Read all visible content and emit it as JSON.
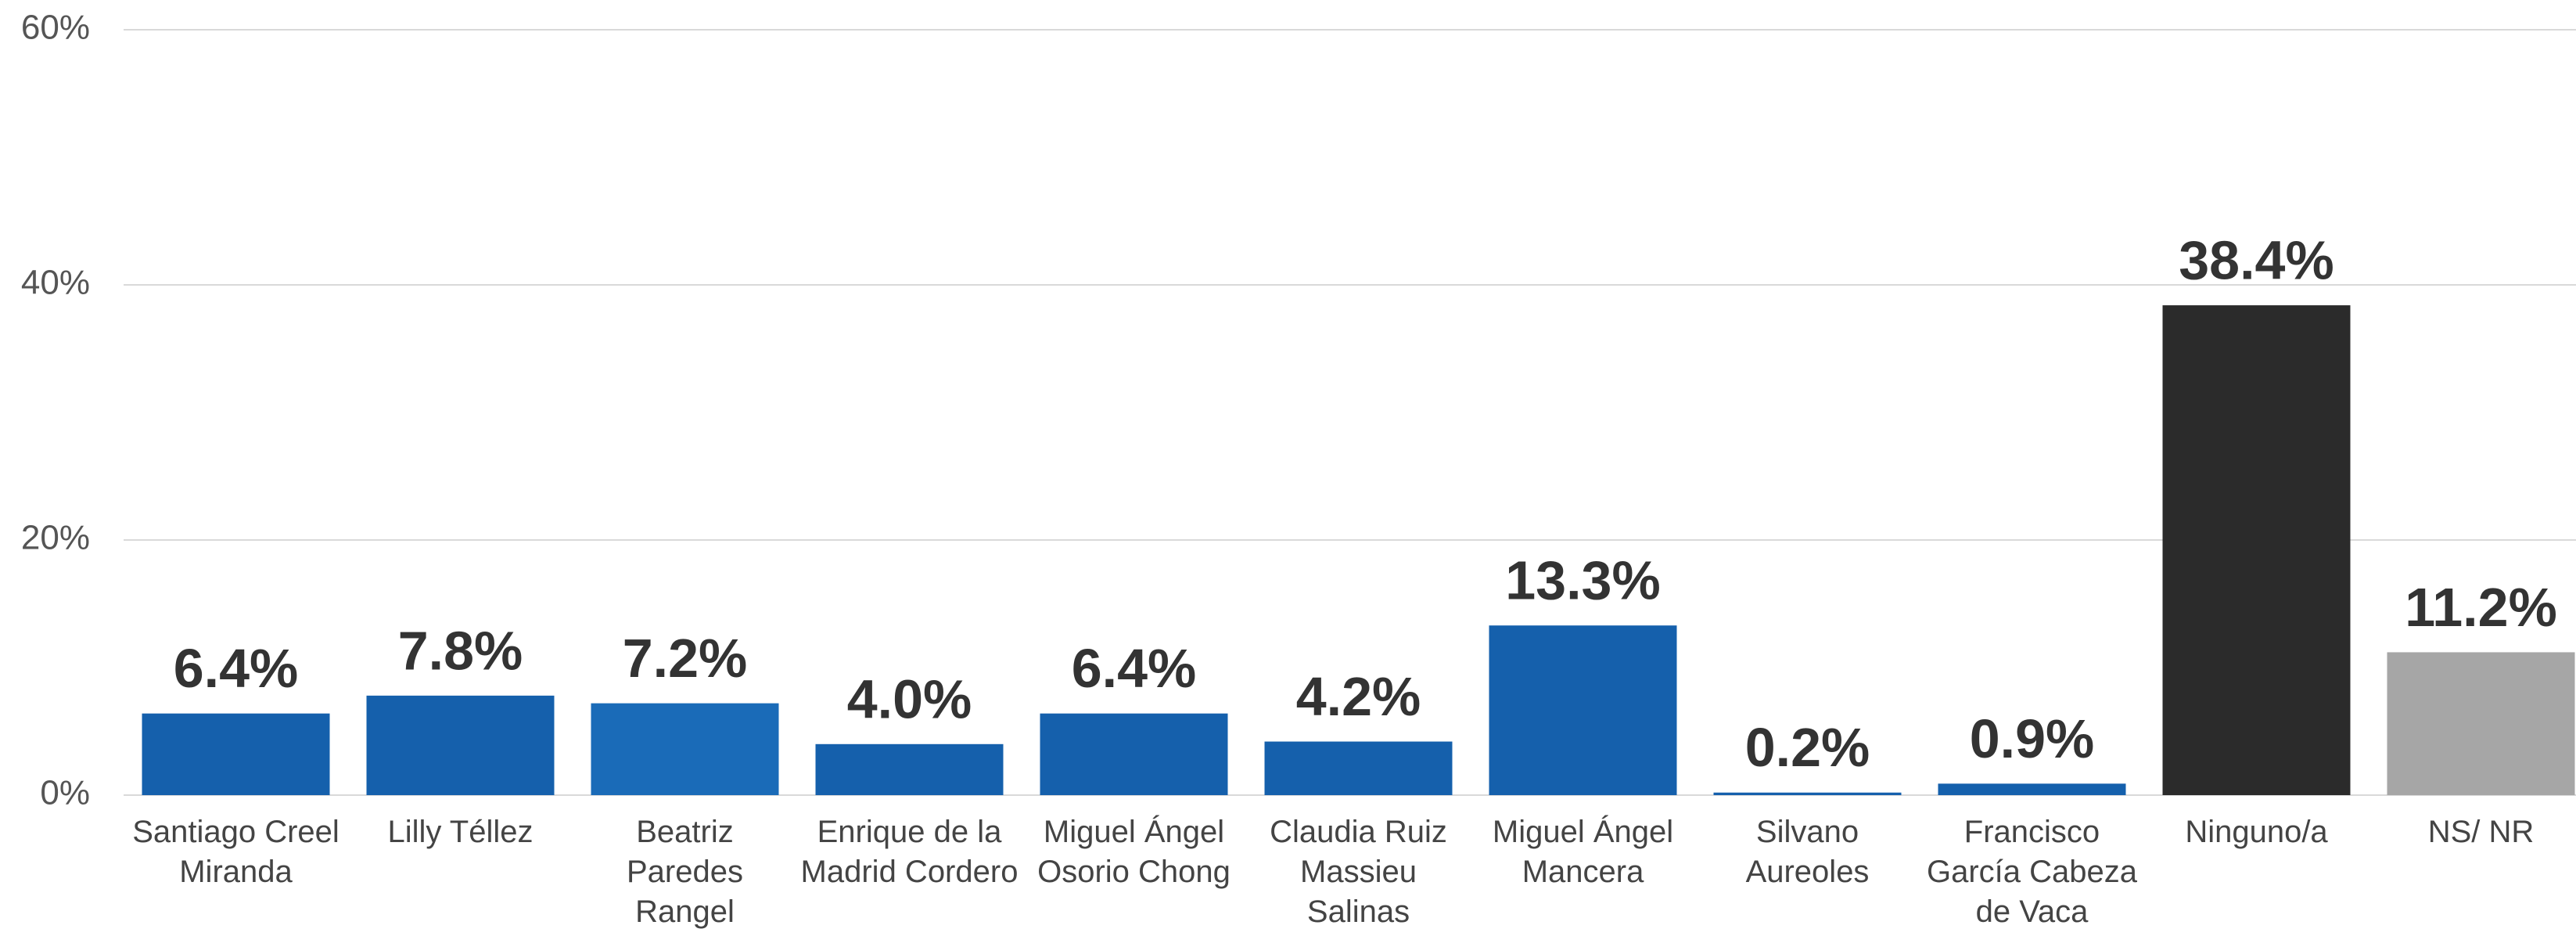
{
  "chart_data": {
    "type": "bar",
    "categories": [
      "Santiago Creel Miranda",
      "Lilly Téllez",
      "Beatriz Paredes Rangel",
      "Enrique de la Madrid Cordero",
      "Miguel Ángel Osorio Chong",
      "Claudia Ruiz Massieu Salinas",
      "Miguel Ángel Mancera",
      "Silvano Aureoles",
      "Francisco García Cabeza de Vaca",
      "Ninguno/a",
      "NS/ NR"
    ],
    "values": [
      6.4,
      7.8,
      7.2,
      4.0,
      6.4,
      4.2,
      13.3,
      0.2,
      0.9,
      38.4,
      11.2
    ],
    "value_labels": [
      "6.4%",
      "7.8%",
      "7.2%",
      "4.0%",
      "6.4%",
      "4.2%",
      "13.3%",
      "0.2%",
      "0.9%",
      "38.4%",
      "11.2%"
    ],
    "colors": [
      "#1560ac",
      "#1560ac",
      "#1a6bb8",
      "#1560ac",
      "#1560ac",
      "#1560ac",
      "#1560ac",
      "#1560ac",
      "#1560ac",
      "#2b2b2b",
      "#a6a6a6"
    ],
    "ylim": [
      0,
      60
    ],
    "yticks": [
      {
        "value": 0,
        "label": "0%"
      },
      {
        "value": 20,
        "label": "20%"
      },
      {
        "value": 40,
        "label": "40%"
      },
      {
        "value": 60,
        "label": "60%"
      }
    ],
    "grid": true
  }
}
